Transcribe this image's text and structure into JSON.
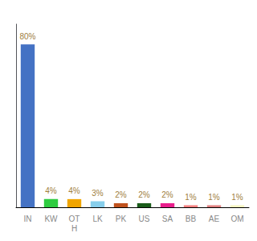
{
  "chart_data": {
    "type": "bar",
    "categories": [
      "IN",
      "KW",
      "OT\nH",
      "LK",
      "PK",
      "US",
      "SA",
      "BB",
      "AE",
      "OM"
    ],
    "values": [
      80,
      4,
      4,
      3,
      2,
      2,
      2,
      1,
      1,
      1
    ],
    "value_labels": [
      "80%",
      "4%",
      "4%",
      "3%",
      "2%",
      "2%",
      "2%",
      "1%",
      "1%",
      "1%"
    ],
    "colors": [
      "#4472c4",
      "#2ecc40",
      "#f0a500",
      "#87ceeb",
      "#c0521e",
      "#1a5c1a",
      "#e91e8c",
      "#f48080",
      "#e08080",
      "#f5f5c0"
    ],
    "ylim": [
      0,
      90
    ],
    "grid": false,
    "tick_labels": "x",
    "data_labels": true
  }
}
